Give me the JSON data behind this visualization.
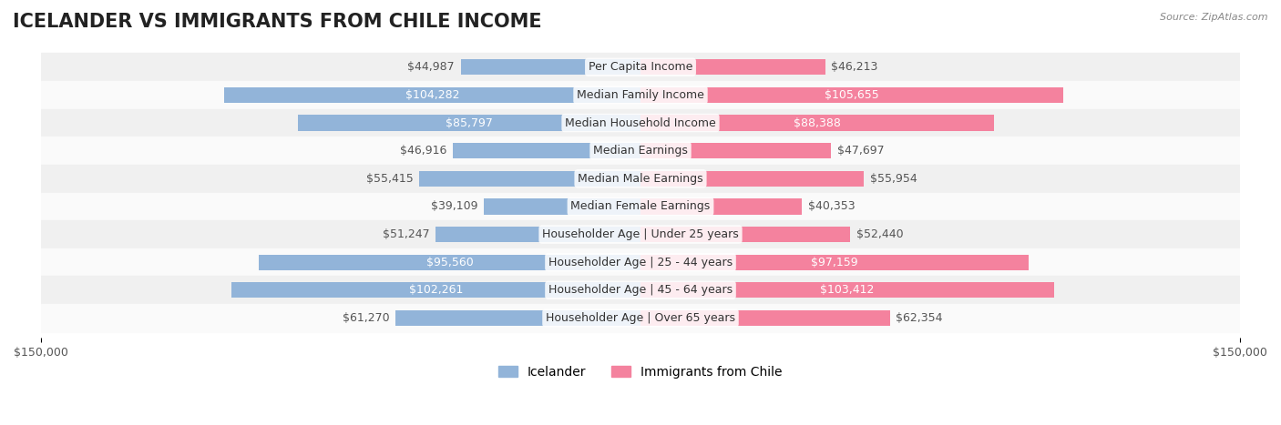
{
  "title": "ICELANDER VS IMMIGRANTS FROM CHILE INCOME",
  "source": "Source: ZipAtlas.com",
  "categories": [
    "Per Capita Income",
    "Median Family Income",
    "Median Household Income",
    "Median Earnings",
    "Median Male Earnings",
    "Median Female Earnings",
    "Householder Age | Under 25 years",
    "Householder Age | 25 - 44 years",
    "Householder Age | 45 - 64 years",
    "Householder Age | Over 65 years"
  ],
  "icelander_values": [
    44987,
    104282,
    85797,
    46916,
    55415,
    39109,
    51247,
    95560,
    102261,
    61270
  ],
  "chile_values": [
    46213,
    105655,
    88388,
    47697,
    55954,
    40353,
    52440,
    97159,
    103412,
    62354
  ],
  "icelander_color": "#92b4d9",
  "chile_color": "#f4829e",
  "icelander_label_color_normal": "#555555",
  "icelander_label_color_white": "#ffffff",
  "chile_label_color_normal": "#555555",
  "chile_label_color_white": "#ffffff",
  "max_value": 150000,
  "background_color": "#ffffff",
  "row_bg_color": "#f0f0f0",
  "row_bg_color_alt": "#fafafa",
  "title_fontsize": 15,
  "label_fontsize": 9,
  "legend_fontsize": 10,
  "axis_label_fontsize": 9,
  "icelander_white_threshold": 75000,
  "chile_white_threshold": 75000,
  "legend_icelander": "Icelander",
  "legend_chile": "Immigrants from Chile"
}
